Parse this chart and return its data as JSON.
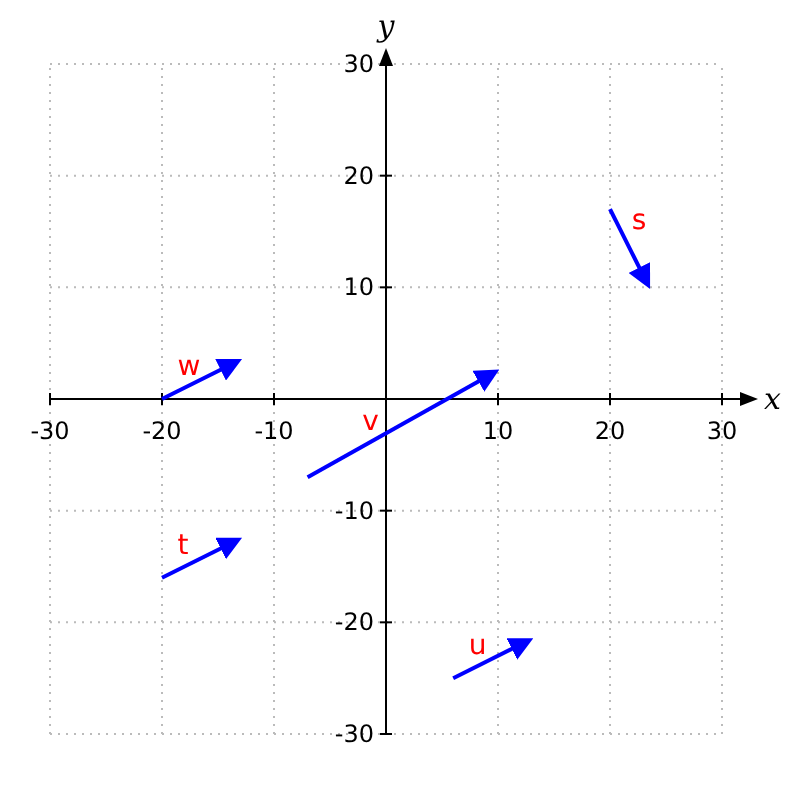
{
  "chart_data": {
    "type": "line",
    "xlabel": "x",
    "ylabel": "y",
    "xlim": [
      -30,
      30
    ],
    "ylim": [
      -30,
      30
    ],
    "xticks": [
      -30,
      -20,
      -10,
      10,
      20,
      30
    ],
    "yticks": [
      -30,
      -20,
      -10,
      10,
      20,
      30
    ],
    "grid": true,
    "line_style": "solid",
    "series": [
      {
        "name": "s",
        "color": "#0000ff",
        "x": [
          20,
          23
        ],
        "values": [
          17,
          11
        ]
      },
      {
        "name": "t",
        "color": "#0000ff",
        "x": [
          -20,
          -14
        ],
        "values": [
          -16,
          -13
        ]
      },
      {
        "name": "u",
        "color": "#0000ff",
        "x": [
          6,
          12
        ],
        "values": [
          -25,
          -22
        ]
      },
      {
        "name": "v",
        "color": "#0000ff",
        "x": [
          -7,
          9
        ],
        "values": [
          -7,
          2
        ]
      },
      {
        "name": "w",
        "color": "#0000ff",
        "x": [
          -20,
          -14
        ],
        "values": [
          0,
          3
        ]
      }
    ]
  }
}
